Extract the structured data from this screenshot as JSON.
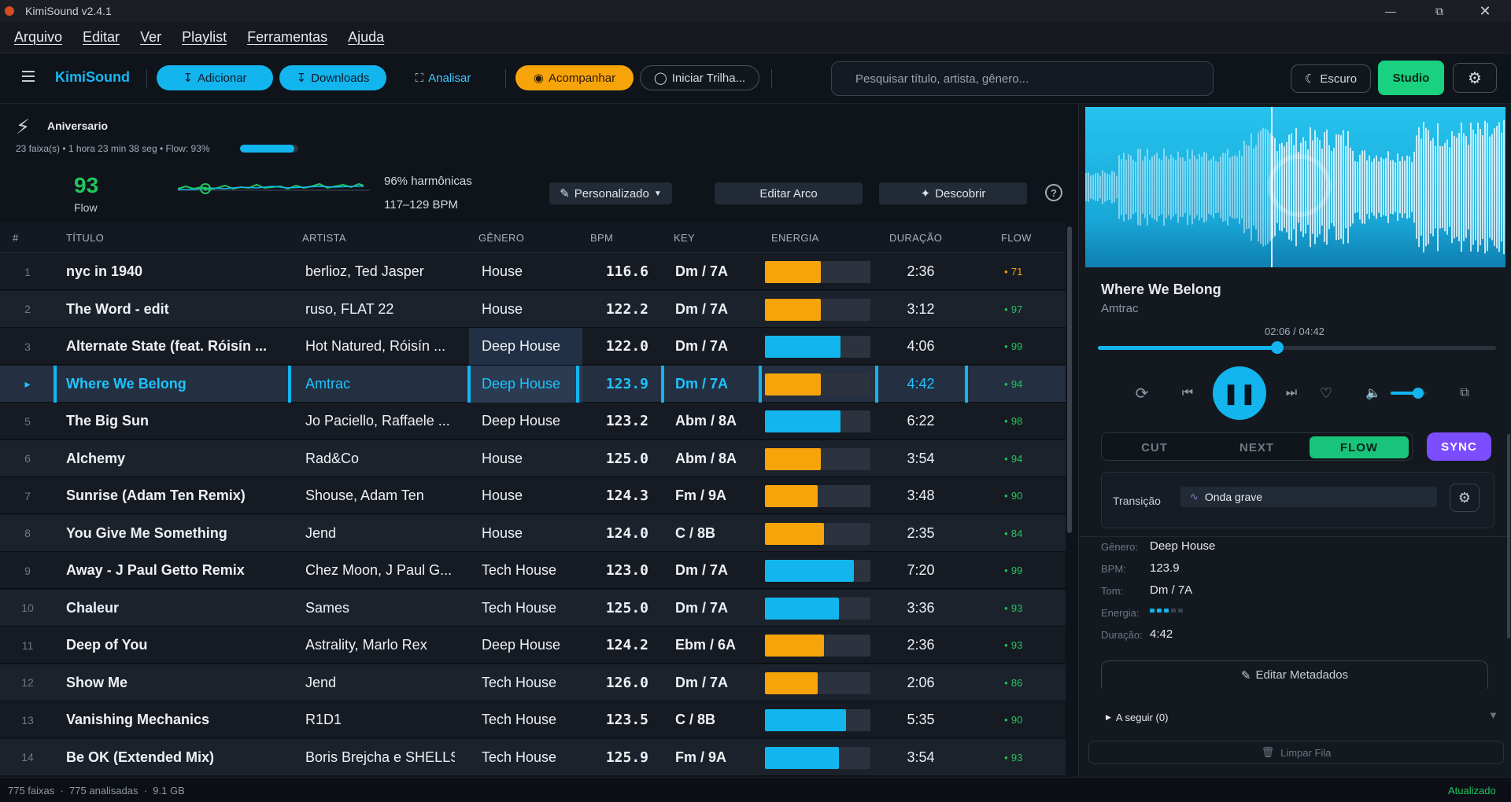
{
  "window": {
    "title": "KimiSound v2.4.1"
  },
  "menu": [
    "Arquivo",
    "Editar",
    "Ver",
    "Playlist",
    "Ferramentas",
    "Ajuda"
  ],
  "toolbar": {
    "brand": "KimiSound",
    "add": "Adicionar",
    "downloads": "Downloads",
    "analyze": "Analisar",
    "follow": "Acompanhar",
    "start_track": "Iniciar Trilha...",
    "search_placeholder": "Pesquisar título, artista, gênero...",
    "theme": "Escuro",
    "studio": "Studio"
  },
  "playlist": {
    "name": "Aniversario",
    "summary": "23 faixa(s) • 1 hora 23 min 38 seg • Flow: 93%",
    "flow_fraction": 0.93,
    "flow_score": "93",
    "flow_label": "Flow",
    "harmonic": "96% harmônicas",
    "bpm_range": "117–129 BPM",
    "custom": "Personalizado",
    "edit_arc": "Editar Arco",
    "discover": "Descobrir"
  },
  "table": {
    "headers": [
      "#",
      "TÍTULO",
      "ARTISTA",
      "GÊNERO",
      "BPM",
      "KEY",
      "ENERGIA",
      "DURAÇÃO",
      "FLOW"
    ],
    "rows": [
      {
        "n": "1",
        "title": "nyc in 1940",
        "artist": "berlioz, Ted Jasper",
        "genre": "House",
        "bpm": "116.6",
        "key": "Dm / 7A",
        "energy": 0.53,
        "ecolor": "#f7a40b",
        "dur": "2:36",
        "flow": "71",
        "fcolor": "#f7a40b"
      },
      {
        "n": "2",
        "title": "The Word - edit",
        "artist": "ruso, FLAT 22",
        "genre": "House",
        "bpm": "122.2",
        "key": "Dm / 7A",
        "energy": 0.53,
        "ecolor": "#f7a40b",
        "dur": "3:12",
        "flow": "97",
        "fcolor": "#22c55e"
      },
      {
        "n": "3",
        "title": "Alternate State (feat. Róisín ...",
        "artist": "Hot Natured, Róisín ...",
        "genre": "Deep House",
        "bpm": "122.0",
        "key": "Dm / 7A",
        "energy": 0.72,
        "ecolor": "#12b5ee",
        "dur": "4:06",
        "flow": "99",
        "fcolor": "#22c55e"
      },
      {
        "n": "▸",
        "title": "Where We Belong",
        "artist": "Amtrac",
        "genre": "Deep House",
        "bpm": "123.9",
        "key": "Dm / 7A",
        "energy": 0.53,
        "ecolor": "#f7a40b",
        "dur": "4:42",
        "flow": "94",
        "fcolor": "#22c55e",
        "selected": true
      },
      {
        "n": "5",
        "title": "The Big Sun",
        "artist": "Jo Paciello, Raffaele ...",
        "genre": "Deep House",
        "bpm": "123.2",
        "key": "Abm / 8A",
        "energy": 0.72,
        "ecolor": "#12b5ee",
        "dur": "6:22",
        "flow": "98",
        "fcolor": "#22c55e"
      },
      {
        "n": "6",
        "title": "Alchemy",
        "artist": "Rad&Co",
        "genre": "House",
        "bpm": "125.0",
        "key": "Abm / 8A",
        "energy": 0.53,
        "ecolor": "#f7a40b",
        "dur": "3:54",
        "flow": "94",
        "fcolor": "#22c55e"
      },
      {
        "n": "7",
        "title": "Sunrise (Adam Ten Remix)",
        "artist": "Shouse, Adam Ten",
        "genre": "House",
        "bpm": "124.3",
        "key": "Fm / 9A",
        "energy": 0.5,
        "ecolor": "#f7a40b",
        "dur": "3:48",
        "flow": "90",
        "fcolor": "#22c55e"
      },
      {
        "n": "8",
        "title": "You Give Me Something",
        "artist": "Jend",
        "genre": "House",
        "bpm": "124.0",
        "key": "C / 8B",
        "energy": 0.56,
        "ecolor": "#f7a40b",
        "dur": "2:35",
        "flow": "84",
        "fcolor": "#22c55e"
      },
      {
        "n": "9",
        "title": "Away - J Paul Getto Remix",
        "artist": "Chez Moon, J Paul G...",
        "genre": "Tech House",
        "bpm": "123.0",
        "key": "Dm / 7A",
        "energy": 0.84,
        "ecolor": "#12b5ee",
        "dur": "7:20",
        "flow": "99",
        "fcolor": "#22c55e"
      },
      {
        "n": "10",
        "title": "Chaleur",
        "artist": "Sames",
        "genre": "Tech House",
        "bpm": "125.0",
        "key": "Dm / 7A",
        "energy": 0.7,
        "ecolor": "#12b5ee",
        "dur": "3:36",
        "flow": "93",
        "fcolor": "#22c55e"
      },
      {
        "n": "11",
        "title": "Deep of You",
        "artist": "Astrality, Marlo Rex",
        "genre": "Deep House",
        "bpm": "124.2",
        "key": "Ebm / 6A",
        "energy": 0.56,
        "ecolor": "#f7a40b",
        "dur": "2:36",
        "flow": "93",
        "fcolor": "#22c55e"
      },
      {
        "n": "12",
        "title": "Show Me",
        "artist": "Jend",
        "genre": "Tech House",
        "bpm": "126.0",
        "key": "Dm / 7A",
        "energy": 0.5,
        "ecolor": "#f7a40b",
        "dur": "2:06",
        "flow": "86",
        "fcolor": "#22c55e"
      },
      {
        "n": "13",
        "title": "Vanishing Mechanics",
        "artist": "R1D1",
        "genre": "Tech House",
        "bpm": "123.5",
        "key": "C / 8B",
        "energy": 0.77,
        "ecolor": "#12b5ee",
        "dur": "5:35",
        "flow": "90",
        "fcolor": "#22c55e"
      },
      {
        "n": "14",
        "title": "Be OK (Extended Mix)",
        "artist": "Boris Brejcha e SHELLS",
        "genre": "Tech House",
        "bpm": "125.9",
        "key": "Fm / 9A",
        "energy": 0.7,
        "ecolor": "#12b5ee",
        "dur": "3:54",
        "flow": "93",
        "fcolor": "#22c55e"
      }
    ]
  },
  "player": {
    "title": "Where We Belong",
    "artist": "Amtrac",
    "time": "02:06 / 04:42",
    "progress": 0.45,
    "volume": 0.75,
    "modes": [
      "CUT",
      "NEXT",
      "FLOW"
    ],
    "active_mode": "FLOW",
    "sync": "SYNC",
    "transition_label": "Transição",
    "transition_value": "Onda grave",
    "meta": {
      "genre_label": "Gênero:",
      "genre": "Deep House",
      "bpm_label": "BPM:",
      "bpm": "123.9",
      "key_label": "Tom:",
      "key": "Dm / 7A",
      "energy_label": "Energia:",
      "energy_level": 3,
      "energy_max": 5,
      "duration_label": "Duração:",
      "duration": "4:42"
    },
    "edit_meta": "Editar Metadados",
    "queue": "A seguir (0)",
    "clear_queue": "Limpar Fila"
  },
  "status": {
    "left": "775 faixas  ·  775 analisadas  ·  9.1 GB",
    "right": "Atualizado"
  },
  "colors": {
    "accent": "#12b5ee",
    "amber": "#f7a40b",
    "green": "#19d17e",
    "purple": "#7c4dff"
  }
}
